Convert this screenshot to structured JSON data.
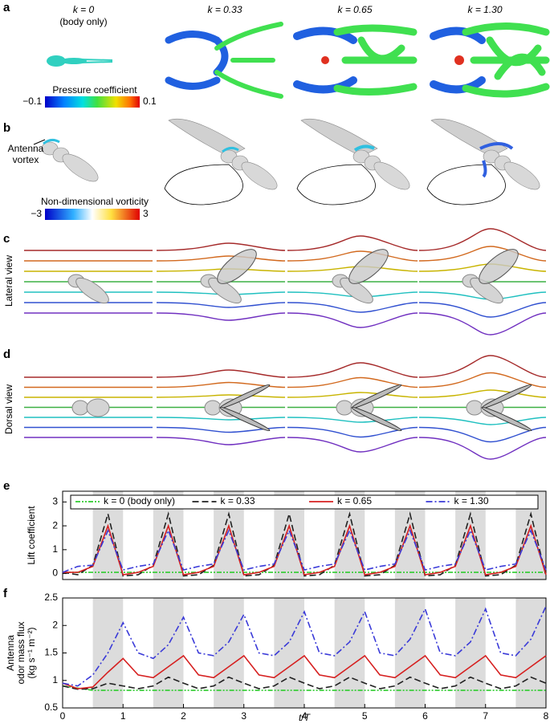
{
  "figure": {
    "panels": [
      "a",
      "b",
      "c",
      "d",
      "e",
      "f"
    ],
    "column_headers": [
      "k = 0",
      "k = 0.33",
      "k = 0.65",
      "k = 1.30"
    ],
    "column_subheader": "(body only)",
    "pressure_colorbar": {
      "label": "Pressure coefficient",
      "min_label": "−0.1",
      "max_label": "0.1"
    },
    "antenna_label": [
      "Antenna",
      "vortex"
    ],
    "vorticity_colorbar": {
      "label": "Non-dimensional vorticity",
      "min_label": "−3",
      "max_label": "3"
    },
    "row_labels": [
      "Lateral view",
      "Dorsal view"
    ]
  },
  "chart_data": [
    {
      "type": "line",
      "y_label": [
        "Lift coefficient"
      ],
      "x": [
        0,
        0.25,
        0.5,
        0.75,
        1,
        1.25,
        1.5,
        1.75,
        2,
        2.25,
        2.5,
        2.75,
        3,
        3.25,
        3.5,
        3.75,
        4,
        4.25,
        4.5,
        4.75,
        5,
        5.25,
        5.5,
        5.75,
        6,
        6.25,
        6.5,
        6.75,
        7,
        7.25,
        7.5,
        7.75,
        8
      ],
      "xlim": [
        0,
        8
      ],
      "ylim": [
        -0.25,
        3.45
      ],
      "yticks": [
        0,
        1,
        2,
        3
      ],
      "legend": "top",
      "series": [
        {
          "name": "k = 0 (body only)",
          "color": "#2ecc2e",
          "dash": "dash-dot-dot",
          "values": [
            0.05,
            0.05,
            0.05,
            0.05,
            0.05,
            0.05,
            0.05,
            0.05,
            0.05,
            0.05,
            0.05,
            0.05,
            0.05,
            0.05,
            0.05,
            0.05,
            0.05,
            0.05,
            0.05,
            0.05,
            0.05,
            0.05,
            0.05,
            0.05,
            0.05,
            0.05,
            0.05,
            0.05,
            0.05,
            0.05,
            0.05,
            0.05,
            0.05
          ]
        },
        {
          "name": "k = 0.33",
          "color": "#222222",
          "dash": "dashed",
          "values": [
            0.05,
            -0.05,
            0.35,
            2.5,
            -0.1,
            -0.05,
            0.35,
            2.5,
            -0.1,
            -0.05,
            0.35,
            2.5,
            -0.1,
            -0.05,
            0.35,
            2.5,
            -0.1,
            -0.05,
            0.35,
            2.5,
            -0.1,
            -0.05,
            0.35,
            2.5,
            -0.1,
            -0.05,
            0.35,
            2.5,
            -0.1,
            -0.05,
            0.35,
            2.5,
            -0.1
          ]
        },
        {
          "name": "k = 0.65",
          "color": "#d62020",
          "dash": "solid",
          "values": [
            0.05,
            0.05,
            0.3,
            2.0,
            -0.05,
            0.05,
            0.3,
            2.0,
            -0.05,
            0.05,
            0.3,
            2.0,
            -0.05,
            0.05,
            0.3,
            2.0,
            -0.05,
            0.05,
            0.3,
            2.0,
            -0.05,
            0.05,
            0.3,
            2.0,
            -0.05,
            0.05,
            0.3,
            2.0,
            -0.05,
            0.05,
            0.3,
            2.0,
            -0.05
          ]
        },
        {
          "name": "k = 1.30",
          "color": "#3a3ad8",
          "dash": "dash-dot",
          "values": [
            0.05,
            0.3,
            0.35,
            1.8,
            0.15,
            0.3,
            0.4,
            1.8,
            0.15,
            0.3,
            0.4,
            1.8,
            0.15,
            0.3,
            0.4,
            1.8,
            0.15,
            0.3,
            0.4,
            1.8,
            0.15,
            0.3,
            0.4,
            1.8,
            0.15,
            0.3,
            0.4,
            1.8,
            0.15,
            0.3,
            0.4,
            1.8,
            0.15
          ]
        }
      ]
    },
    {
      "type": "line",
      "y_label": [
        "Antenna",
        "odor mass flux",
        "(kg s⁻¹ m⁻²)"
      ],
      "x_label": "t/T",
      "x": [
        0,
        0.25,
        0.5,
        0.75,
        1,
        1.25,
        1.5,
        1.75,
        2,
        2.25,
        2.5,
        2.75,
        3,
        3.25,
        3.5,
        3.75,
        4,
        4.25,
        4.5,
        4.75,
        5,
        5.25,
        5.5,
        5.75,
        6,
        6.25,
        6.5,
        6.75,
        7,
        7.25,
        7.5,
        7.75,
        8
      ],
      "xlim": [
        0,
        8
      ],
      "xticks": [
        0,
        1,
        2,
        3,
        4,
        5,
        6,
        7,
        8
      ],
      "ylim": [
        0.5,
        2.5
      ],
      "yticks": [
        0.5,
        1,
        1.5,
        2,
        2.5
      ],
      "series": [
        {
          "name": "k = 0 (body only)",
          "color": "#2ecc2e",
          "dash": "dash-dot-dot",
          "values": [
            0.9,
            0.86,
            0.82,
            0.82,
            0.82,
            0.82,
            0.82,
            0.82,
            0.82,
            0.82,
            0.82,
            0.82,
            0.82,
            0.82,
            0.82,
            0.82,
            0.82,
            0.82,
            0.82,
            0.82,
            0.82,
            0.82,
            0.82,
            0.82,
            0.82,
            0.82,
            0.82,
            0.82,
            0.82,
            0.82,
            0.82,
            0.82,
            0.82
          ]
        },
        {
          "name": "k = 0.33",
          "color": "#222222",
          "dash": "dashed",
          "values": [
            0.9,
            0.84,
            0.85,
            0.95,
            0.9,
            0.85,
            0.9,
            1.06,
            0.95,
            0.85,
            0.9,
            1.06,
            0.95,
            0.85,
            0.9,
            1.06,
            0.95,
            0.85,
            0.9,
            1.06,
            0.95,
            0.85,
            0.9,
            1.06,
            0.95,
            0.85,
            0.9,
            1.06,
            0.95,
            0.85,
            0.9,
            1.06,
            0.95
          ]
        },
        {
          "name": "k = 0.65",
          "color": "#d62020",
          "dash": "solid",
          "values": [
            0.95,
            0.85,
            0.88,
            1.15,
            1.4,
            1.1,
            1.05,
            1.25,
            1.45,
            1.1,
            1.05,
            1.25,
            1.45,
            1.1,
            1.05,
            1.25,
            1.45,
            1.1,
            1.05,
            1.25,
            1.45,
            1.1,
            1.05,
            1.25,
            1.45,
            1.1,
            1.05,
            1.25,
            1.45,
            1.1,
            1.05,
            1.25,
            1.45
          ]
        },
        {
          "name": "k = 1.30",
          "color": "#3a3ad8",
          "dash": "dash-dot",
          "values": [
            0.95,
            0.9,
            1.1,
            1.5,
            2.05,
            1.5,
            1.4,
            1.65,
            2.15,
            1.5,
            1.45,
            1.7,
            2.2,
            1.5,
            1.45,
            1.7,
            2.25,
            1.5,
            1.45,
            1.7,
            2.25,
            1.5,
            1.45,
            1.75,
            2.3,
            1.5,
            1.45,
            1.7,
            2.3,
            1.5,
            1.45,
            1.75,
            2.35
          ]
        }
      ]
    }
  ]
}
